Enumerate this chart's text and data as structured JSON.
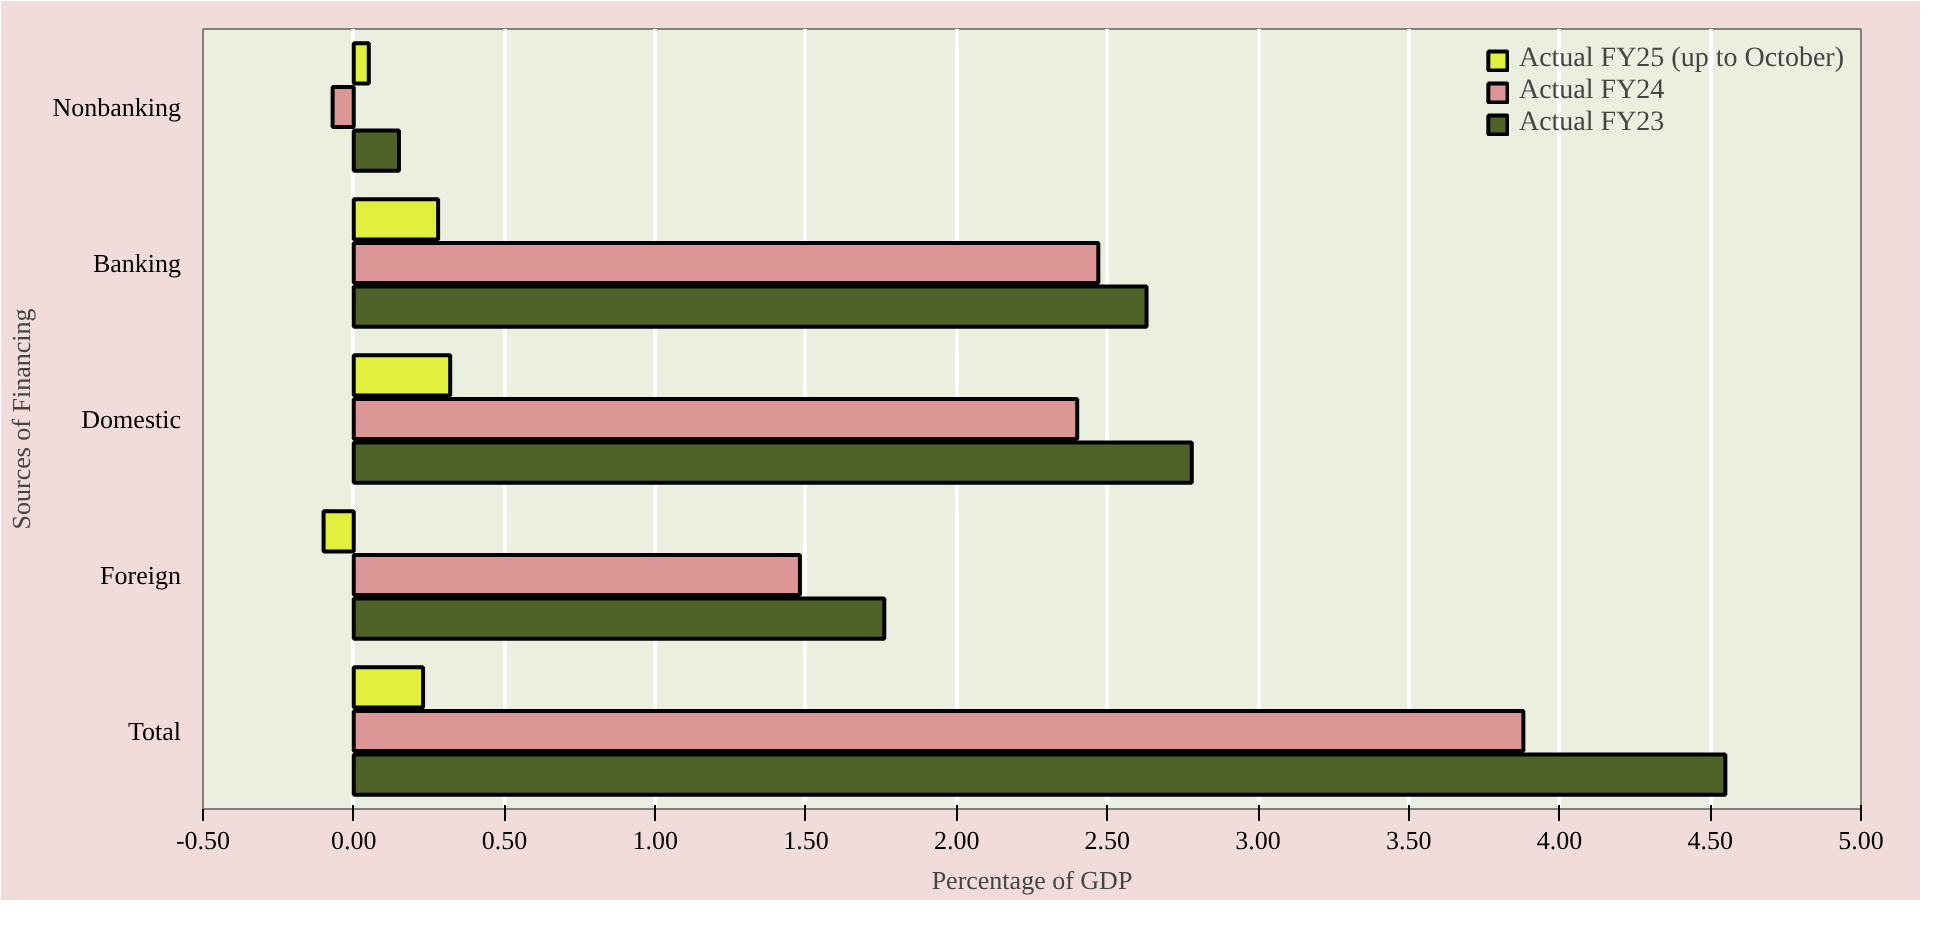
{
  "chart_data": {
    "type": "bar",
    "orientation": "horizontal",
    "xlabel": "Percentage of GDP",
    "ylabel": "Sources of Financing",
    "categories": [
      "Nonbanking",
      "Banking",
      "Domestic",
      "Foreign",
      "Total"
    ],
    "series": [
      {
        "name": "Actual FY25 (up to October)",
        "color": "#e0f03c",
        "values": [
          0.05,
          0.28,
          0.32,
          -0.1,
          0.23
        ]
      },
      {
        "name": "Actual FY24",
        "color": "#dc9696",
        "values": [
          -0.07,
          2.47,
          2.4,
          1.48,
          3.88
        ]
      },
      {
        "name": "Actual FY23",
        "color": "#4f6228",
        "values": [
          0.15,
          2.63,
          2.78,
          1.76,
          4.55
        ]
      }
    ],
    "xlim": [
      -0.5,
      5.0
    ],
    "xticks": [
      {
        "value": -0.5,
        "label": "-0.50"
      },
      {
        "value": 0,
        "label": "0.00"
      },
      {
        "value": 0.5,
        "label": "0.50"
      },
      {
        "value": 1,
        "label": "1.00"
      },
      {
        "value": 1.5,
        "label": "1.50"
      },
      {
        "value": 2,
        "label": "2.00"
      },
      {
        "value": 2.5,
        "label": "2.50"
      },
      {
        "value": 3,
        "label": "3.00"
      },
      {
        "value": 3.5,
        "label": "3.50"
      },
      {
        "value": 4,
        "label": "4.00"
      },
      {
        "value": 4.5,
        "label": "4.50"
      },
      {
        "value": 5,
        "label": "5.00"
      }
    ],
    "grid": "x",
    "legend": "top right"
  }
}
